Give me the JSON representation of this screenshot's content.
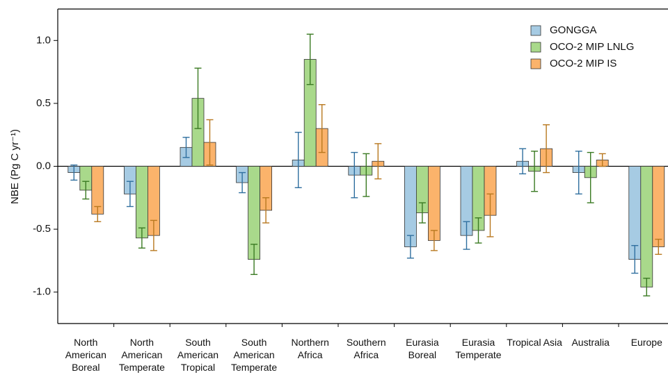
{
  "chart_data": {
    "type": "bar",
    "y_label": "NBE (Pg C yr⁻¹)",
    "categories": [
      "North American Boreal",
      "North American Temperate",
      "South American Tropical",
      "South American Temperate",
      "Northern Africa",
      "Southern Africa",
      "Eurasia Boreal",
      "Eurasia Temperate",
      "Tropical Asia",
      "Australia",
      "Europe"
    ],
    "series": [
      {
        "name": "GONGGA",
        "color": "#a6cbe3",
        "error_color": "#2f6f9f",
        "values": [
          -0.05,
          -0.22,
          0.15,
          -0.13,
          0.05,
          -0.07,
          -0.64,
          -0.55,
          0.04,
          -0.05,
          -0.74
        ],
        "errors": [
          0.06,
          0.1,
          0.08,
          0.08,
          0.22,
          0.18,
          0.09,
          0.11,
          0.1,
          0.17,
          0.11
        ]
      },
      {
        "name": "OCO-2 MIP LNLG",
        "color": "#a9d98b",
        "error_color": "#3a7a22",
        "values": [
          -0.19,
          -0.57,
          0.54,
          -0.74,
          0.85,
          -0.07,
          -0.37,
          -0.51,
          -0.04,
          -0.09,
          -0.96
        ],
        "errors": [
          0.07,
          0.08,
          0.24,
          0.12,
          0.2,
          0.17,
          0.08,
          0.1,
          0.16,
          0.2,
          0.07
        ]
      },
      {
        "name": "OCO-2 MIP IS",
        "color": "#fbb36b",
        "error_color": "#b8781f",
        "values": [
          -0.38,
          -0.55,
          0.19,
          -0.35,
          0.3,
          0.04,
          -0.59,
          -0.39,
          0.14,
          0.05,
          -0.64
        ],
        "errors": [
          0.06,
          0.12,
          0.18,
          0.1,
          0.19,
          0.14,
          0.08,
          0.17,
          0.19,
          0.05,
          0.06
        ]
      }
    ],
    "ylim": [
      -1.25,
      1.25
    ],
    "yticks": [
      {
        "value": -1,
        "label": "-1.0"
      },
      -0.5,
      {
        "value": 0,
        "label": "0.0"
      },
      0.5,
      {
        "value": 1,
        "label": "1.0"
      }
    ],
    "legend": "top-right",
    "grid": false
  }
}
